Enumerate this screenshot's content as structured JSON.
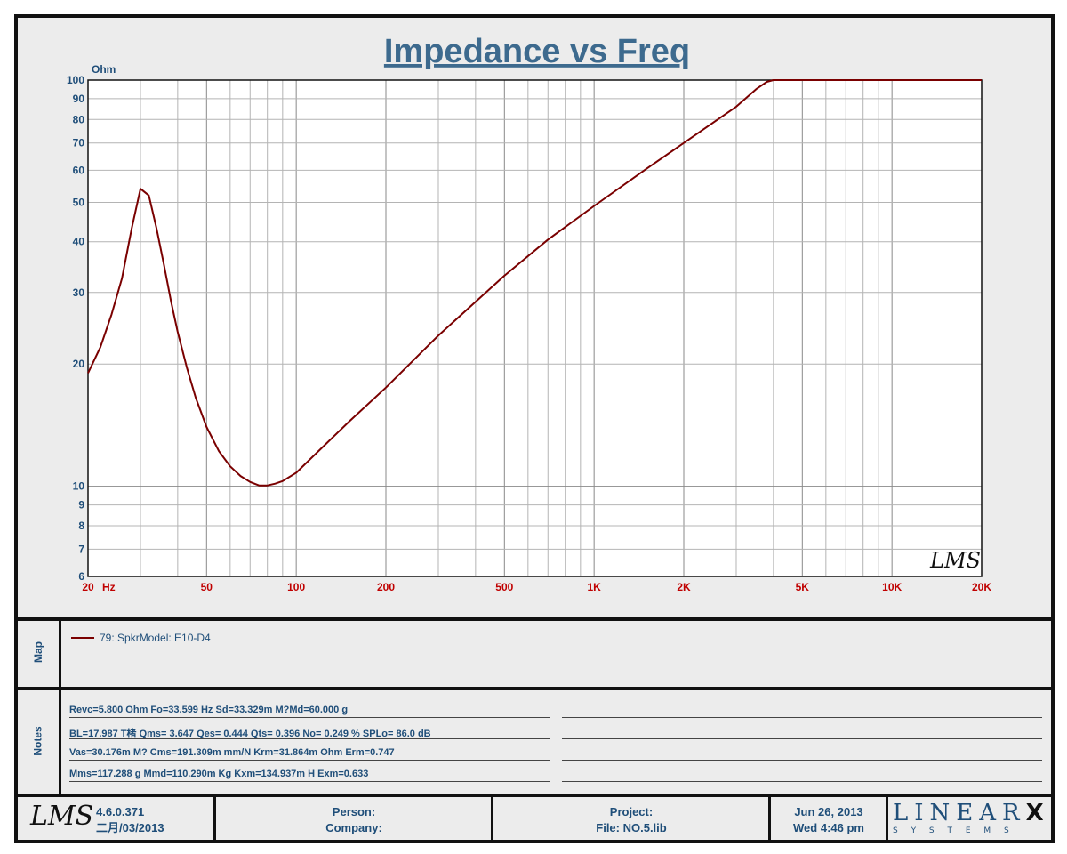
{
  "chart_data": {
    "type": "line",
    "title": "Impedance vs Freq",
    "ylabel": "Ohm",
    "xlabel": "Hz",
    "x_scale": "log",
    "y_scale": "log",
    "xlim": [
      20,
      20000
    ],
    "ylim": [
      6,
      100
    ],
    "grid": true,
    "x_ticks": [
      {
        "v": 20,
        "label": "20"
      },
      {
        "v": 50,
        "label": "50"
      },
      {
        "v": 100,
        "label": "100"
      },
      {
        "v": 200,
        "label": "200"
      },
      {
        "v": 500,
        "label": "500"
      },
      {
        "v": 1000,
        "label": "1K"
      },
      {
        "v": 2000,
        "label": "2K"
      },
      {
        "v": 5000,
        "label": "5K"
      },
      {
        "v": 10000,
        "label": "10K"
      },
      {
        "v": 20000,
        "label": "20K"
      }
    ],
    "y_ticks": [
      {
        "v": 6,
        "label": "6"
      },
      {
        "v": 7,
        "label": "7"
      },
      {
        "v": 8,
        "label": "8"
      },
      {
        "v": 9,
        "label": "9"
      },
      {
        "v": 10,
        "label": "10"
      },
      {
        "v": 20,
        "label": "20"
      },
      {
        "v": 30,
        "label": "30"
      },
      {
        "v": 40,
        "label": "40"
      },
      {
        "v": 50,
        "label": "50"
      },
      {
        "v": 60,
        "label": "60"
      },
      {
        "v": 70,
        "label": "70"
      },
      {
        "v": 80,
        "label": "80"
      },
      {
        "v": 90,
        "label": "90"
      },
      {
        "v": 100,
        "label": "100"
      }
    ],
    "series": [
      {
        "name": "79: SpkrModel: E10-D4",
        "color": "#7a0000",
        "x": [
          20,
          22,
          24,
          26,
          28,
          30,
          32,
          34,
          36,
          38,
          40,
          43,
          46,
          50,
          55,
          60,
          65,
          70,
          75,
          80,
          85,
          90,
          100,
          120,
          150,
          200,
          300,
          500,
          700,
          1000,
          1500,
          2000,
          3000,
          3500,
          3800,
          4000,
          5000,
          10000,
          20000
        ],
        "y": [
          19,
          22,
          26.5,
          32.5,
          43,
          54,
          52,
          43,
          35,
          28.5,
          24,
          19.5,
          16.5,
          14,
          12.2,
          11.2,
          10.6,
          10.25,
          10.05,
          10.05,
          10.15,
          10.3,
          10.8,
          12.3,
          14.4,
          17.5,
          23.5,
          33,
          40.5,
          49,
          60.5,
          70,
          86,
          95,
          99,
          100,
          100,
          100,
          100
        ]
      }
    ]
  },
  "map": {
    "label": "Map",
    "legend_text": "79: SpkrModel: E10-D4",
    "legend_color": "#7a0000"
  },
  "notes": {
    "label": "Notes",
    "lines": [
      "Revc=5.800 Ohm  Fo=33.599 Hz  Sd=33.329m M?Md=60.000 g",
      "BL=17.987 T楮  Qms= 3.647  Qes= 0.444  Qts= 0.396  No= 0.249 %  SPLo= 86.0 dB",
      "Vas=30.176m M? Cms=191.309m mm/N  Krm=31.864m Ohm  Erm=0.747",
      "Mms=117.288 g  Mmd=110.290m Kg  Kxm=134.937m H  Exm=0.633"
    ]
  },
  "footer": {
    "logo_text": "LMS",
    "version": "4.6.0.371",
    "date_cn": "二月/03/2013",
    "person_label": "Person:",
    "company_label": "Company:",
    "project_label": "Project:",
    "file_label": "File: NO.5.lib",
    "date": "Jun 26, 2013",
    "day_time": "Wed  4:46 pm",
    "brand_top": "LINEAR",
    "brand_x": "X",
    "brand_bottom": "S Y S T E M S"
  },
  "watermark": "LMS"
}
